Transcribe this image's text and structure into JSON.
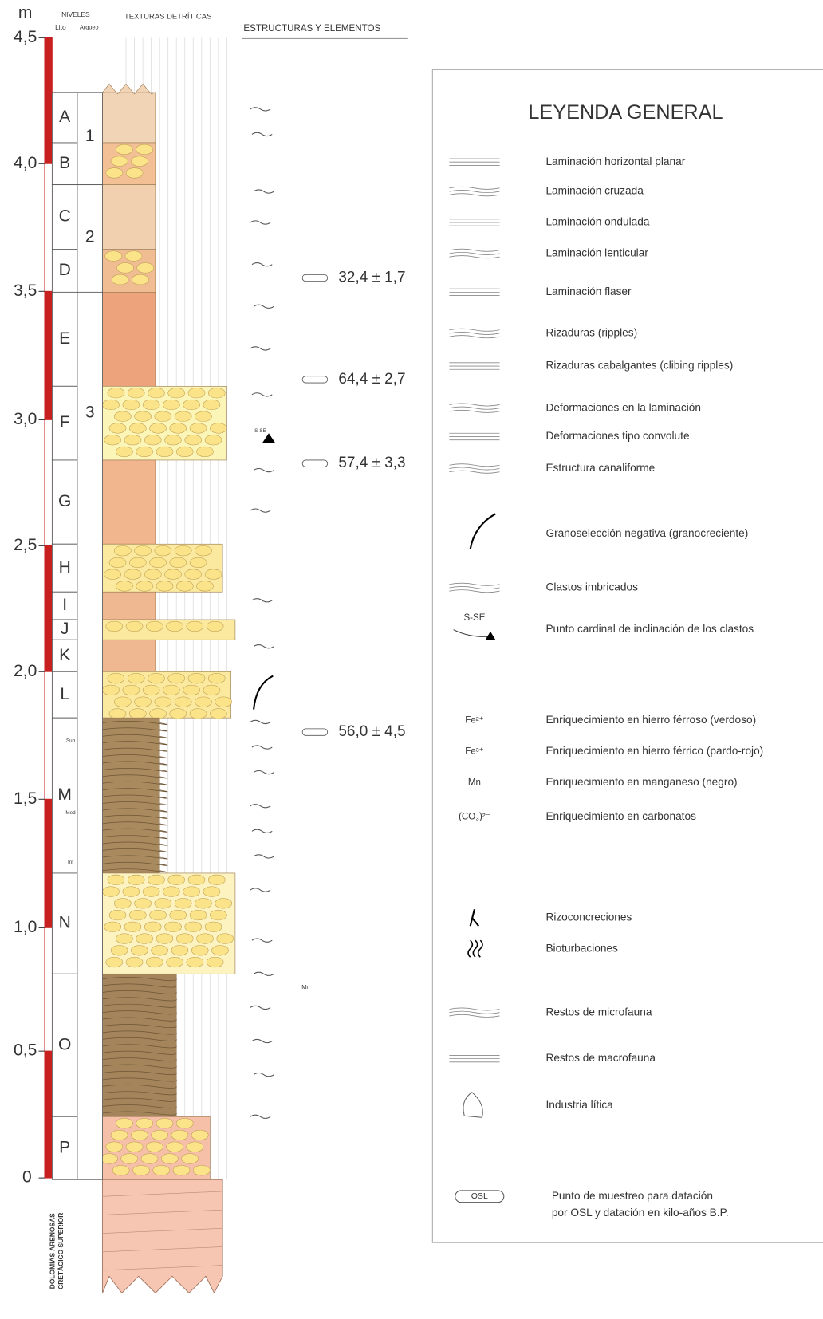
{
  "header": {
    "unit": "m",
    "niveles": "NIVELES",
    "lito": "Lito",
    "arqueo": "Arqueo",
    "texturas": "TEXTURAS DETRÍTICAS",
    "estructuras": "ESTRUCTURAS Y ELEMENTOS"
  },
  "depth_axis": [
    "4,5",
    "4,0",
    "3,5",
    "3,0",
    "2,5",
    "2,0",
    "1,5",
    "1,0",
    "0,5",
    "0"
  ],
  "lito_levels": [
    "A",
    "B",
    "C",
    "D",
    "E",
    "F",
    "G",
    "H",
    "I",
    "J",
    "K",
    "L",
    "M",
    "N",
    "O",
    "P"
  ],
  "sublevels": [
    "Sup",
    "Med",
    "Inf"
  ],
  "arqueo_levels": [
    "1",
    "2",
    "3"
  ],
  "osl_dates": [
    "32,4 ± 1,7",
    "64,4 ± 2,7",
    "57,4 ± 3,3",
    "56,0 ± 4,5"
  ],
  "column_annotations": [
    "S-SE",
    "Mn"
  ],
  "bedrock": [
    "DOLOMIAS ARENOSAS",
    "CRETÁCICO SUPERIOR"
  ],
  "legend": {
    "title": "LEYENDA GENERAL",
    "items": [
      {
        "text": "Laminación horizontal planar"
      },
      {
        "text": "Laminación cruzada"
      },
      {
        "text": "Laminación ondulada"
      },
      {
        "text": "Laminación lenticular"
      },
      {
        "text": "Laminación flaser"
      },
      {
        "text": "Rizaduras (ripples)"
      },
      {
        "text": "Rizaduras cabalgantes (clibing ripples)"
      },
      {
        "text": "Deformaciones en la laminación"
      },
      {
        "text": "Deformaciones tipo convolute"
      },
      {
        "text": "Estructura canaliforme"
      },
      {
        "text": "Granoselección negativa (granocreciente)"
      },
      {
        "text": "Clastos imbricados"
      },
      {
        "text": "Punto cardinal de inclinación de los clastos",
        "symbol": "S-SE"
      },
      {
        "text": "Enriquecimiento en hierro férroso (verdoso)",
        "symbol": "Fe²⁺"
      },
      {
        "text": "Enriquecimiento en hierro férrico (pardo-rojo)",
        "symbol": "Fe³⁺"
      },
      {
        "text": "Enriquecimiento en manganeso (negro)",
        "symbol": "Mn"
      },
      {
        "text": "Enriquecimiento en carbonatos",
        "symbol": "(CO₃)²⁻"
      },
      {
        "text": "Rizoconcreciones"
      },
      {
        "text": "Bioturbaciones"
      },
      {
        "text": "Restos de microfauna"
      },
      {
        "text": "Restos de macrofauna"
      },
      {
        "text": "Industria lítica"
      }
    ],
    "osl": {
      "symbol": "OSL",
      "lines": [
        "Punto de muestreo para datación",
        "por OSL y datación en kilo-años B.P."
      ]
    }
  }
}
